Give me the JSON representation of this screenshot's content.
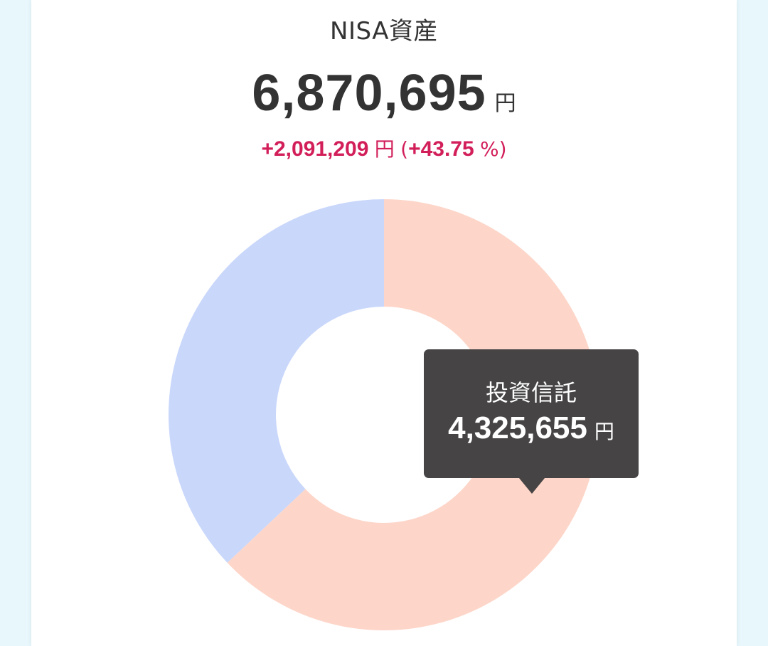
{
  "header": {
    "title": "NISA資産"
  },
  "summary": {
    "total_amount": "6,870,695",
    "total_unit": "円",
    "change_amount": "+2,091,209",
    "change_unit": "円",
    "change_paren_open": "(",
    "change_percent": "+43.75",
    "change_percent_unit": "%",
    "change_paren_close": ")"
  },
  "colors": {
    "positive_change": "#d21f5a",
    "slice_investment_trust": "#fdd6c9",
    "slice_other": "#c9d7fb",
    "tooltip_bg": "#464444"
  },
  "tooltip": {
    "label": "投資信託",
    "value": "4,325,655",
    "unit": "円"
  },
  "chart_data": {
    "type": "pie",
    "categories": [
      "投資信託",
      ""
    ],
    "values": [
      4325655,
      2545040
    ],
    "colors": [
      "#fdd6c9",
      "#c9d7fb"
    ],
    "title": "",
    "donut": true
  }
}
